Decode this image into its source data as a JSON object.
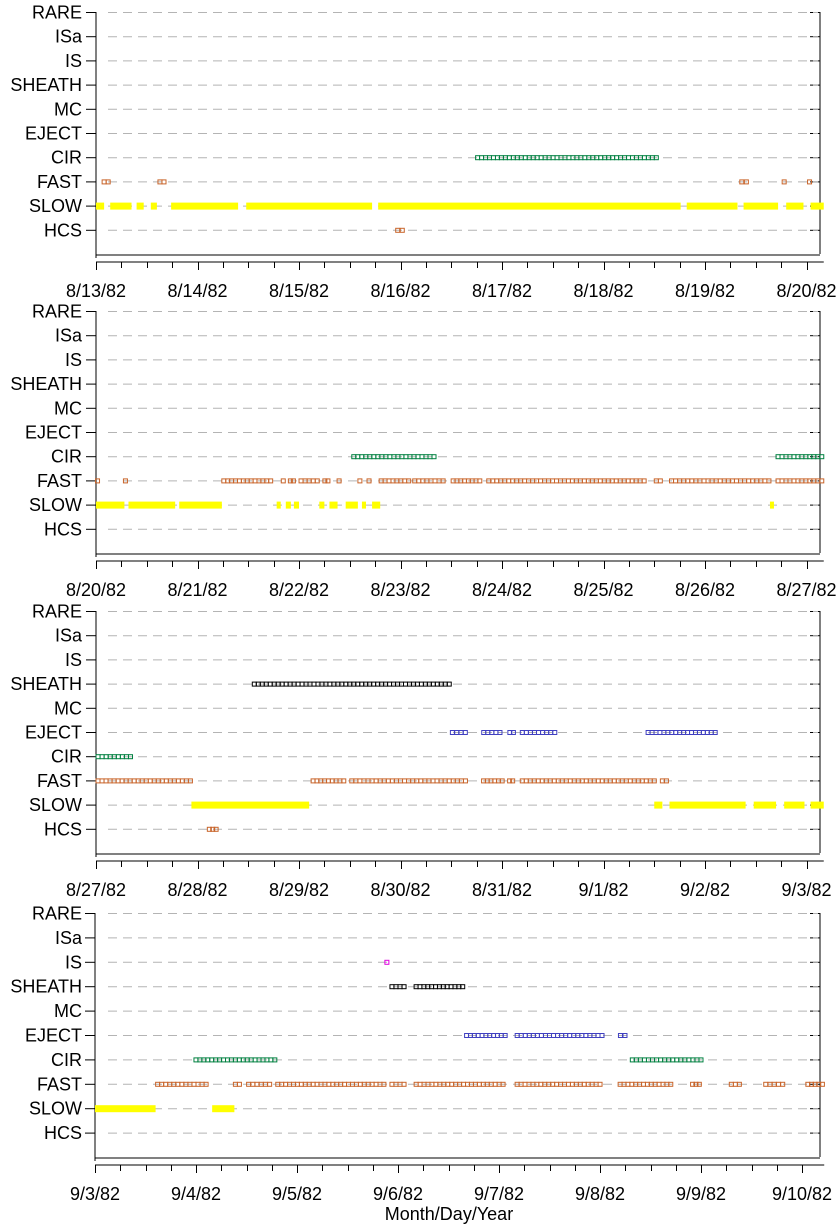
{
  "chart_data": {
    "type": "scatter",
    "xlabel": "Month/Day/Year",
    "categories": [
      "RARE",
      "ISa",
      "IS",
      "SHEATH",
      "MC",
      "EJECT",
      "CIR",
      "FAST",
      "SLOW",
      "HCS"
    ],
    "x_unit": "days",
    "colors": {
      "SLOW": "#ffff00",
      "FAST": "#c8642a",
      "CIR": "#008040",
      "EJECT": "#4040c0",
      "SHEATH": "#000000",
      "IS": "#e000e0",
      "HCS": "#c8642a",
      "grid": "#b4b4b4"
    },
    "panels": [
      {
        "tick_labels": [
          "8/13/82",
          "8/14/82",
          "8/15/82",
          "8/16/82",
          "8/17/82",
          "8/18/82",
          "8/19/82",
          "8/20/82"
        ],
        "x_range": [
          0,
          7.17
        ],
        "series": [
          {
            "category": "SLOW",
            "style": "bar",
            "segments": [
              [
                0.0,
                0.08
              ],
              [
                0.14,
                0.35
              ],
              [
                0.4,
                0.47
              ],
              [
                0.54,
                0.6
              ],
              [
                0.74,
                1.4
              ],
              [
                1.48,
                2.72
              ],
              [
                2.78,
                5.76
              ],
              [
                5.82,
                6.32
              ],
              [
                6.38,
                6.72
              ],
              [
                6.8,
                6.97
              ],
              [
                7.04,
                7.17
              ]
            ]
          },
          {
            "category": "FAST",
            "style": "markers",
            "segments": [
              [
                0.06,
                0.14
              ],
              [
                0.61,
                0.69
              ],
              [
                6.34,
                6.43
              ],
              [
                6.76,
                6.8
              ],
              [
                7.01,
                7.05
              ]
            ]
          },
          {
            "category": "CIR",
            "style": "markers",
            "segments": [
              [
                3.74,
                5.54
              ]
            ]
          },
          {
            "category": "HCS",
            "style": "markers",
            "segments": [
              [
                2.95,
                3.04
              ]
            ]
          }
        ]
      },
      {
        "tick_labels": [
          "8/20/82",
          "8/21/82",
          "8/22/82",
          "8/23/82",
          "8/24/82",
          "8/25/82",
          "8/26/82",
          "8/27/82"
        ],
        "x_range": [
          0,
          7.17
        ],
        "series": [
          {
            "category": "SLOW",
            "style": "bar",
            "segments": [
              [
                0.0,
                0.28
              ],
              [
                0.32,
                0.78
              ],
              [
                0.82,
                1.24
              ],
              [
                1.78,
                1.82
              ],
              [
                1.87,
                1.92
              ],
              [
                1.95,
                2.0
              ],
              [
                2.2,
                2.25
              ],
              [
                2.3,
                2.38
              ],
              [
                2.46,
                2.58
              ],
              [
                2.62,
                2.66
              ],
              [
                2.72,
                2.8
              ]
            ]
          },
          {
            "category": "FAST",
            "style": "markers",
            "segments": [
              [
                0.0,
                0.03
              ],
              [
                0.27,
                0.31
              ],
              [
                1.24,
                1.74
              ],
              [
                1.83,
                1.86
              ],
              [
                1.9,
                1.96
              ],
              [
                2.0,
                2.2
              ],
              [
                2.24,
                2.3
              ],
              [
                2.37,
                2.42
              ],
              [
                2.58,
                2.62
              ],
              [
                2.67,
                2.71
              ],
              [
                2.79,
                3.1
              ],
              [
                3.12,
                3.44
              ],
              [
                3.5,
                3.8
              ],
              [
                3.85,
                5.42
              ],
              [
                5.5,
                5.58
              ],
              [
                5.65,
                6.65
              ],
              [
                6.7,
                7.17
              ]
            ]
          },
          {
            "category": "CIR",
            "style": "markers",
            "segments": [
              [
                2.52,
                3.35
              ],
              [
                6.7,
                7.17
              ]
            ]
          },
          {
            "category": "SLOW",
            "style": "bar-dot",
            "segments": [
              [
                6.64,
                6.67
              ]
            ]
          }
        ]
      },
      {
        "tick_labels": [
          "8/27/82",
          "8/28/82",
          "8/29/82",
          "8/30/82",
          "8/31/82",
          "9/1/82",
          "9/2/82",
          "9/3/82"
        ],
        "x_range": [
          0,
          7.17
        ],
        "series": [
          {
            "category": "SLOW",
            "style": "bar",
            "segments": [
              [
                0.94,
                2.1
              ],
              [
                5.5,
                5.58
              ],
              [
                5.65,
                6.4
              ],
              [
                6.48,
                6.7
              ],
              [
                6.78,
                6.98
              ],
              [
                7.04,
                7.17
              ]
            ]
          },
          {
            "category": "FAST",
            "style": "markers",
            "segments": [
              [
                0.0,
                0.95
              ],
              [
                2.12,
                2.46
              ],
              [
                2.5,
                3.66
              ],
              [
                3.8,
                4.02
              ],
              [
                4.06,
                4.12
              ],
              [
                4.18,
                5.52
              ],
              [
                5.56,
                5.64
              ]
            ]
          },
          {
            "category": "CIR",
            "style": "markers",
            "segments": [
              [
                0.0,
                0.36
              ]
            ]
          },
          {
            "category": "EJECT",
            "style": "markers",
            "segments": [
              [
                3.49,
                3.66
              ],
              [
                3.8,
                4.0
              ],
              [
                4.06,
                4.13
              ],
              [
                4.18,
                4.54
              ],
              [
                5.42,
                6.12
              ]
            ]
          },
          {
            "category": "SHEATH",
            "style": "markers",
            "segments": [
              [
                1.54,
                3.5
              ]
            ]
          },
          {
            "category": "HCS",
            "style": "markers",
            "segments": [
              [
                1.1,
                1.2
              ]
            ]
          }
        ]
      },
      {
        "tick_labels": [
          "9/3/82",
          "9/4/82",
          "9/5/82",
          "9/6/82",
          "9/7/82",
          "9/8/82",
          "9/9/82",
          "9/10/82"
        ],
        "x_range": [
          0,
          7.22
        ],
        "series": [
          {
            "category": "SLOW",
            "style": "bar",
            "segments": [
              [
                0.0,
                0.6
              ],
              [
                1.16,
                1.38
              ]
            ]
          },
          {
            "category": "FAST",
            "style": "markers",
            "segments": [
              [
                0.6,
                1.12
              ],
              [
                1.37,
                1.45
              ],
              [
                1.5,
                1.75
              ],
              [
                1.79,
                2.88
              ],
              [
                2.92,
                3.08
              ],
              [
                3.16,
                4.06
              ],
              [
                4.16,
                5.02
              ],
              [
                5.18,
                5.72
              ],
              [
                5.9,
                6.0
              ],
              [
                6.28,
                6.4
              ],
              [
                6.62,
                6.83
              ],
              [
                7.04,
                7.22
              ]
            ]
          },
          {
            "category": "CIR",
            "style": "markers",
            "segments": [
              [
                0.98,
                1.8
              ],
              [
                5.3,
                6.02
              ]
            ]
          },
          {
            "category": "EJECT",
            "style": "markers",
            "segments": [
              [
                3.66,
                4.08
              ],
              [
                4.16,
                5.04
              ],
              [
                5.18,
                5.27
              ]
            ]
          },
          {
            "category": "SHEATH",
            "style": "markers",
            "segments": [
              [
                2.92,
                3.08
              ],
              [
                3.16,
                3.66
              ]
            ]
          },
          {
            "category": "IS",
            "style": "markers",
            "segments": [
              [
                2.87,
                2.91
              ]
            ]
          }
        ]
      }
    ]
  }
}
